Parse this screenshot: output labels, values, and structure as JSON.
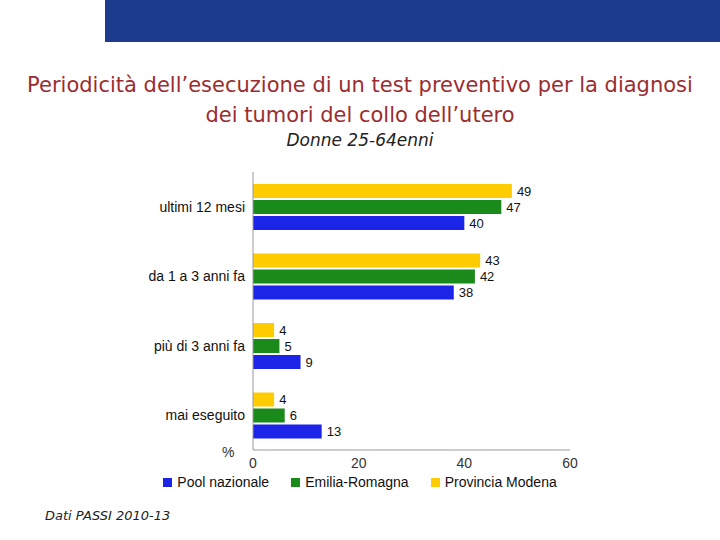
{
  "chart_data": {
    "type": "bar",
    "title": "Periodicità dell’esecuzione di un test preventivo per la diagnosi dei tumori del collo dell’utero",
    "subtitle": "Donne 25-64enni",
    "orientation": "horizontal",
    "categories": [
      "ultimi 12 mesi",
      "da 1 a 3 anni fa",
      "più di 3 anni fa",
      "mai eseguito"
    ],
    "series": [
      {
        "name": "Pool nazionale",
        "color": "#1c24e8",
        "values": [
          40,
          38,
          9,
          13
        ]
      },
      {
        "name": "Emilia-Romagna",
        "color": "#1a8a1a",
        "values": [
          47,
          42,
          5,
          6
        ]
      },
      {
        "name": "Provincia Modena",
        "color": "#ffcc00",
        "values": [
          49,
          43,
          4,
          4
        ]
      }
    ],
    "xlim": [
      0,
      60
    ],
    "xticks": [
      0,
      20,
      40,
      60
    ],
    "xlabel": "%",
    "data_labels": true,
    "legend": "bottom",
    "grid": false,
    "annotations": [
      "Dati PASSI 2010-13"
    ]
  }
}
